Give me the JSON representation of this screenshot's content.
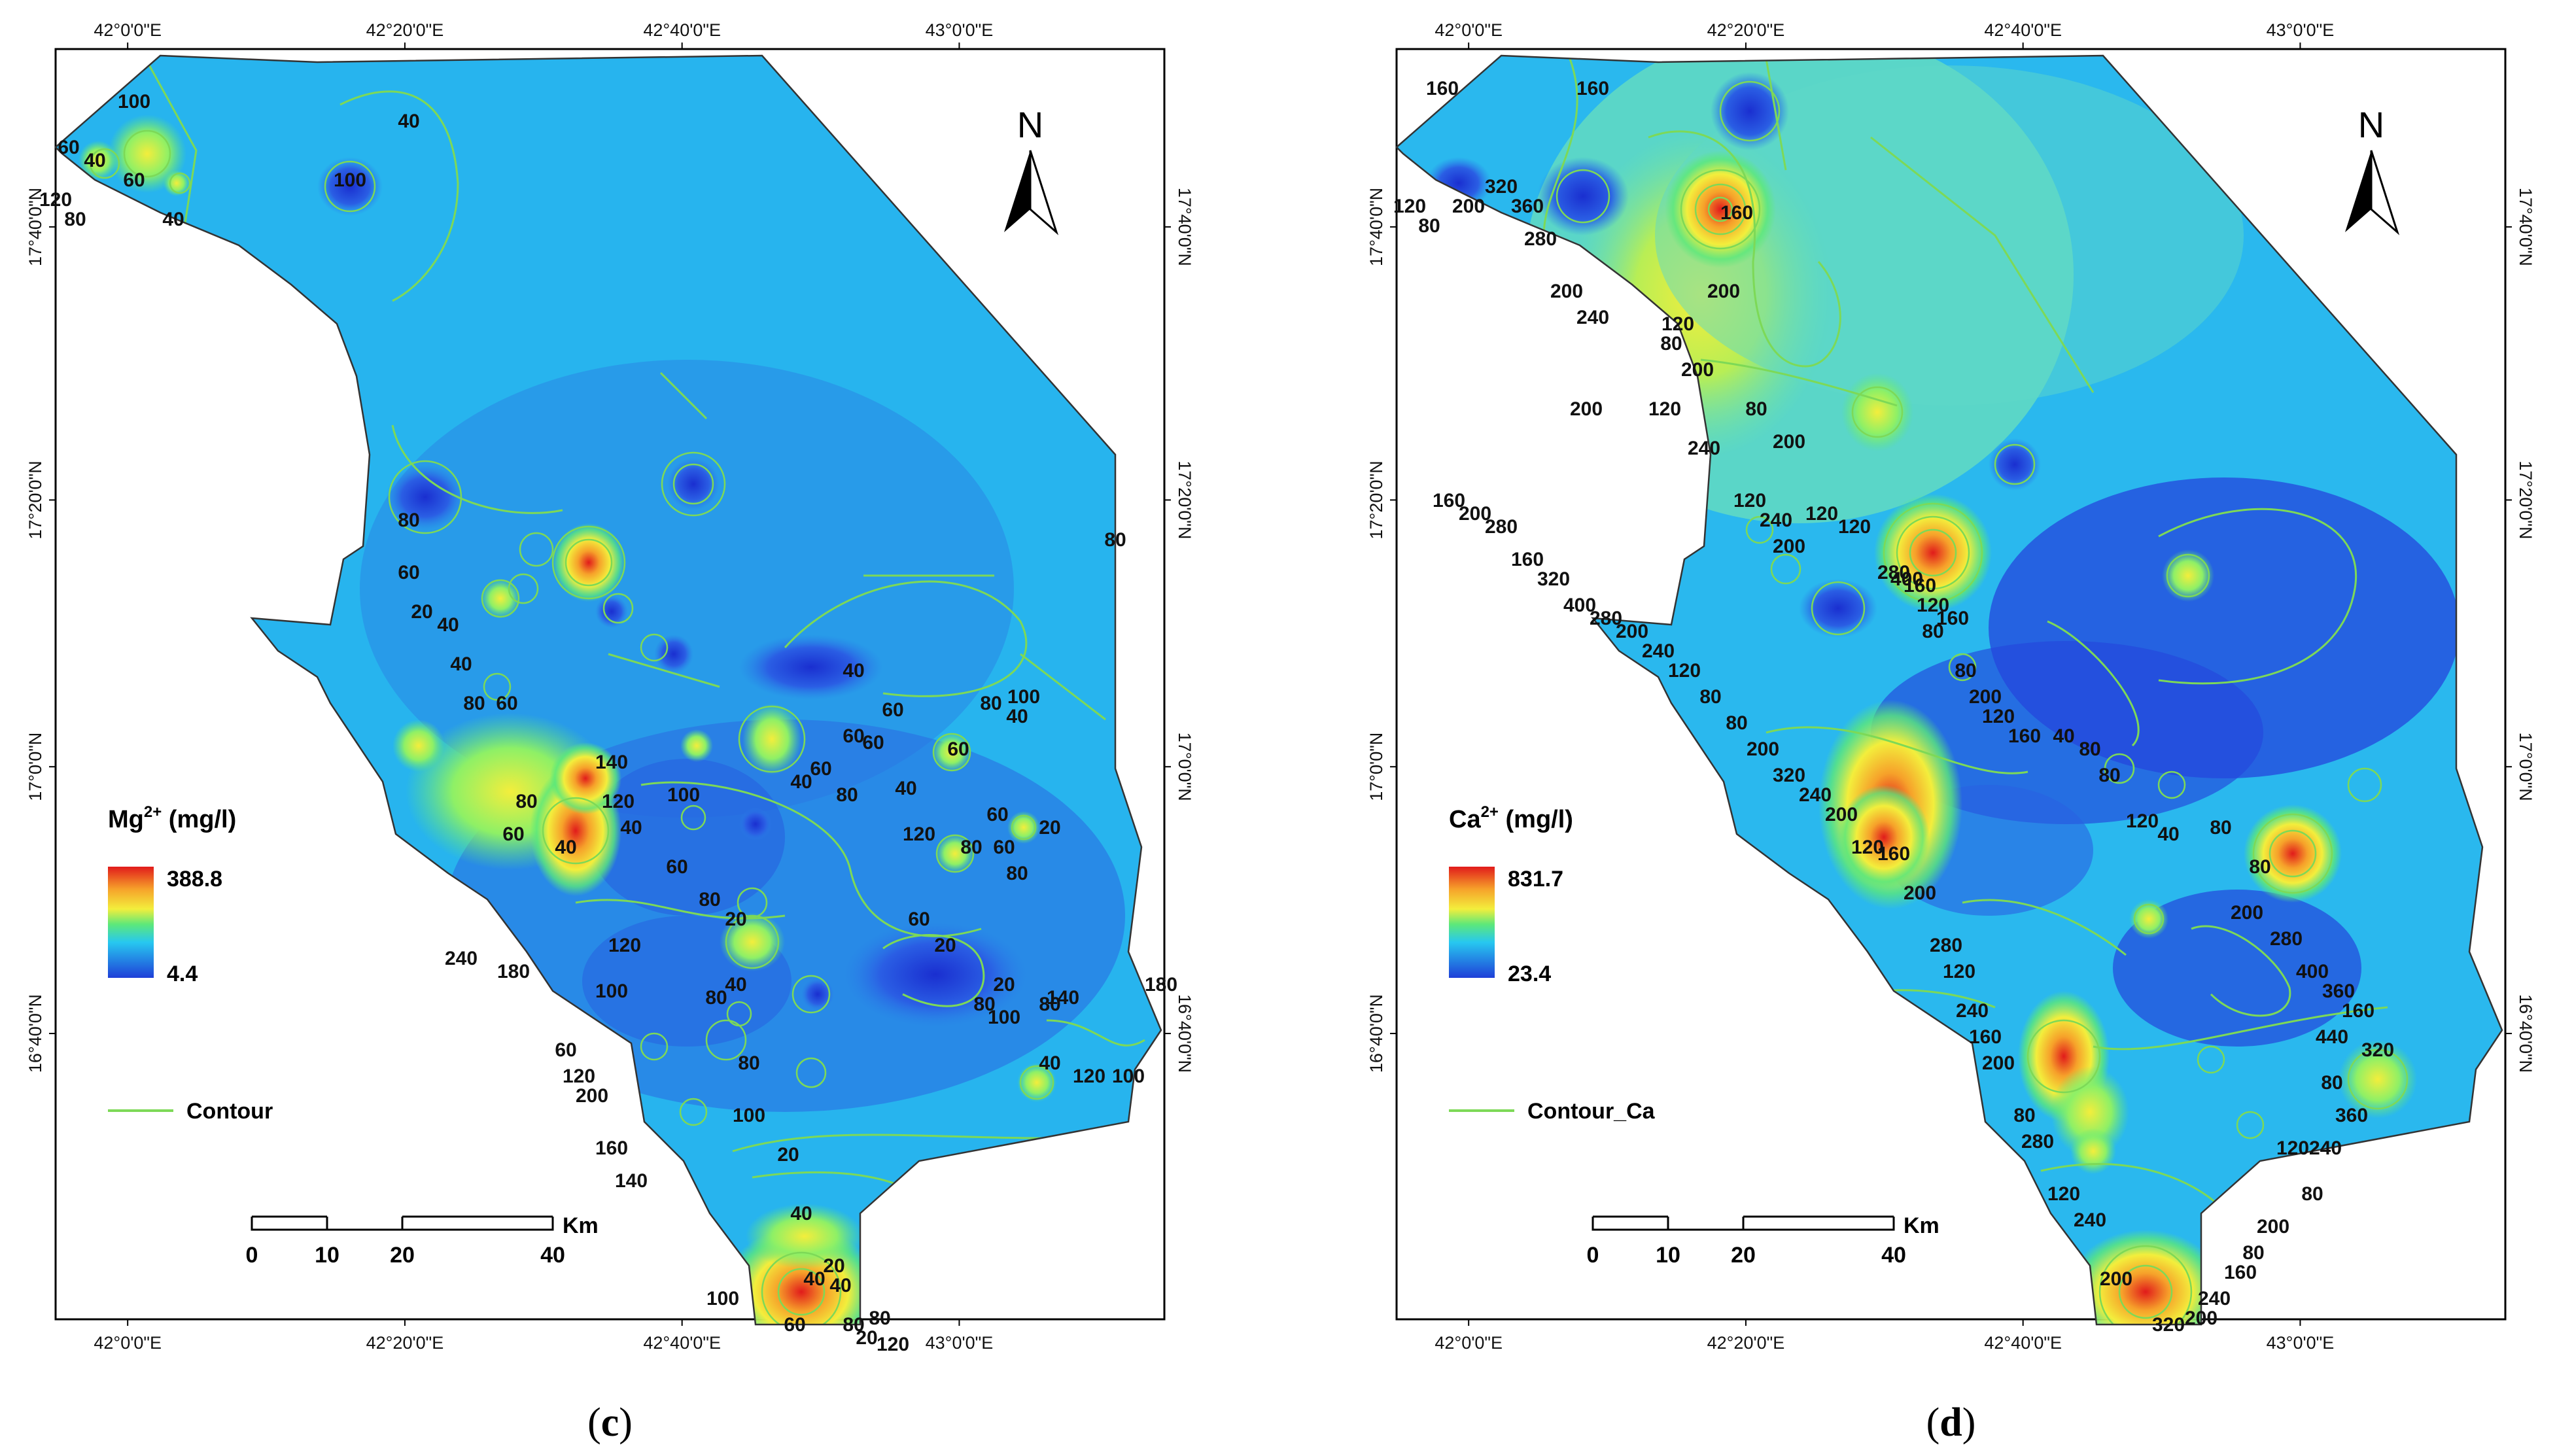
{
  "panels": [
    {
      "caption_letter": "c",
      "legend_title": "Mg",
      "legend_superscript": "2+",
      "legend_unit": " (mg/l)",
      "legend_max": "388.8",
      "legend_min": "4.4",
      "contour_label": "Contour",
      "contour_values": [
        "100",
        "60",
        "40",
        "120",
        "80",
        "60",
        "40",
        "100",
        "40",
        "80",
        "60",
        "20",
        "40",
        "40",
        "80",
        "60",
        "80",
        "60",
        "40",
        "140",
        "120",
        "40",
        "100",
        "60",
        "80",
        "80",
        "20",
        "40",
        "80",
        "100",
        "20",
        "40",
        "40",
        "60",
        "80",
        "120",
        "100",
        "120",
        "240",
        "180",
        "60",
        "200",
        "160",
        "140",
        "100",
        "20",
        "40",
        "20",
        "120",
        "80",
        "60",
        "20",
        "20",
        "100",
        "80",
        "40",
        "60",
        "80",
        "60",
        "80",
        "20",
        "60",
        "40",
        "100",
        "80",
        "80",
        "60",
        "40",
        "60",
        "40",
        "60",
        "80",
        "60",
        "40",
        "120",
        "80",
        "120",
        "100",
        "180",
        "140"
      ]
    },
    {
      "caption_letter": "d",
      "legend_title": "Ca",
      "legend_superscript": "2+",
      "legend_unit": " (mg/l)",
      "legend_max": "831.7",
      "legend_min": "23.4",
      "contour_label": "Contour_Ca",
      "contour_values": [
        "160",
        "160",
        "120",
        "80",
        "200",
        "320",
        "360",
        "280",
        "200",
        "240",
        "200",
        "200",
        "240",
        "200",
        "160",
        "120",
        "80",
        "120",
        "80",
        "200",
        "120",
        "240",
        "200",
        "120",
        "120",
        "280",
        "400",
        "160",
        "120",
        "160",
        "80",
        "80",
        "200",
        "120",
        "160",
        "40",
        "80",
        "80",
        "120",
        "40",
        "80",
        "80",
        "200",
        "280",
        "400",
        "360",
        "160",
        "320",
        "80",
        "440",
        "360",
        "240",
        "120",
        "80",
        "200",
        "80",
        "160",
        "240",
        "200",
        "320",
        "200",
        "240",
        "120",
        "280",
        "80",
        "200",
        "160",
        "240",
        "120",
        "280",
        "200",
        "160",
        "120",
        "200",
        "240",
        "320",
        "200",
        "80",
        "80",
        "120",
        "240",
        "200",
        "280",
        "400",
        "320",
        "160",
        "280",
        "200",
        "160"
      ]
    }
  ],
  "lon_labels": [
    "42°0'0\"E",
    "42°20'0\"E",
    "42°40'0\"E",
    "43°0'0\"E"
  ],
  "lat_labels": [
    "17°40'0\"N",
    "17°20'0\"N",
    "17°0'0\"N",
    "16°40'0\"N"
  ],
  "north_label": "N",
  "scale": {
    "ticks": [
      "0",
      "10",
      "20",
      "40"
    ],
    "unit": "Km"
  },
  "colors": {
    "low": "#1f3fd8",
    "mid": "#27c8f0",
    "green": "#5ce87a",
    "yellow": "#f3ee3c",
    "high": "#e11b1b",
    "contour": "#7dd957"
  }
}
